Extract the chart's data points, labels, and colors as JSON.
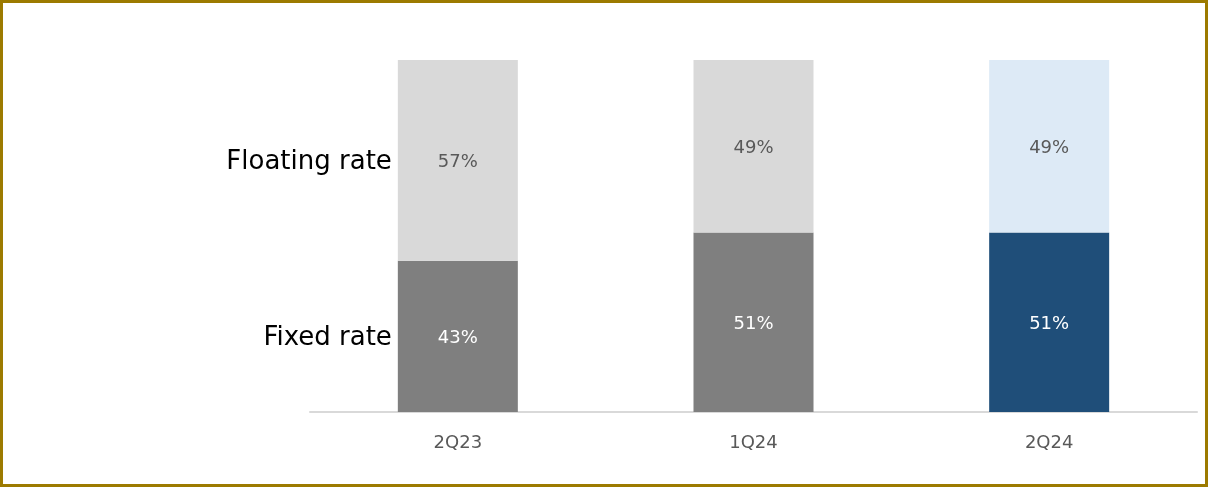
{
  "chart_data": {
    "type": "bar",
    "stacked": true,
    "tick_labels": "x",
    "legend": false,
    "categories": [
      "2Q23",
      "1Q24",
      "2Q24"
    ],
    "series": [
      {
        "name": "Fixed rate",
        "colors": [
          "#7f7f7f",
          "#7f7f7f",
          "#1f4e79"
        ],
        "values": [
          43,
          51,
          51
        ],
        "value_labels": [
          "43%",
          "51%",
          "51%"
        ]
      },
      {
        "name": "Floating rate",
        "colors": [
          "#d9d9d9",
          "#d9d9d9",
          "#ddeaf6"
        ],
        "values": [
          57,
          49,
          49
        ],
        "value_labels": [
          "57%",
          "49%",
          "49%"
        ]
      }
    ]
  }
}
